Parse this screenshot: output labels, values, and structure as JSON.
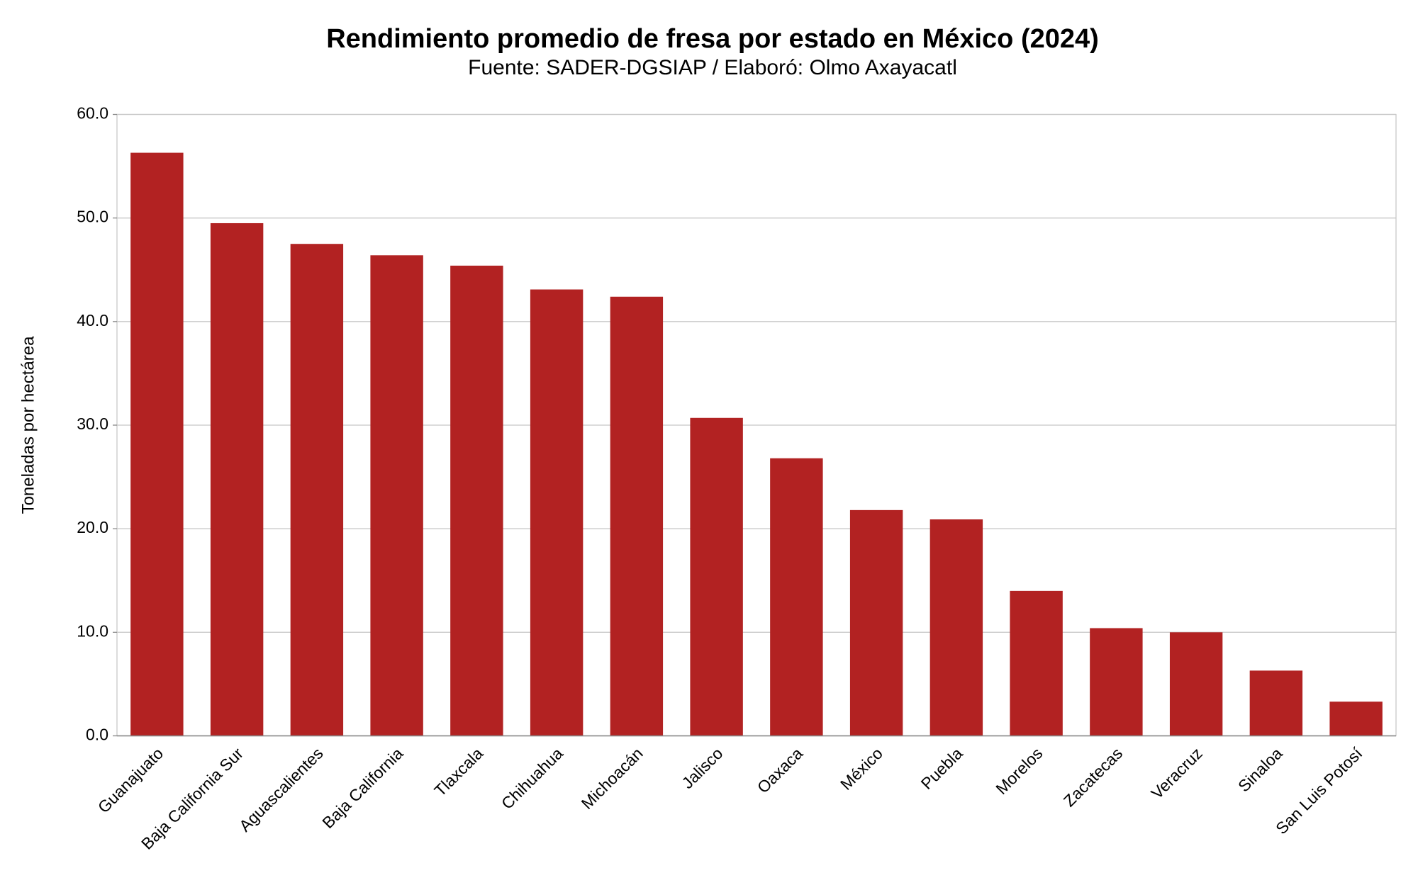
{
  "chart_data": {
    "type": "bar",
    "title": "Rendimiento promedio de fresa por estado en México (2024)",
    "subtitle": "Fuente: SADER-DGSIAP / Elaboró: Olmo Axayacatl",
    "y_label": "Toneladas por hectárea",
    "categories": [
      "Guanajuato",
      "Baja California Sur",
      "Aguascalientes",
      "Baja California",
      "Tlaxcala",
      "Chihuahua",
      "Michoacán",
      "Jalisco",
      "Oaxaca",
      "México",
      "Puebla",
      "Morelos",
      "Zacatecas",
      "Veracruz",
      "Sinaloa",
      "San Luis Potosí"
    ],
    "values": [
      56.3,
      49.5,
      47.5,
      46.4,
      45.4,
      43.1,
      42.4,
      30.7,
      26.8,
      21.8,
      20.9,
      14.0,
      10.4,
      10.0,
      6.3,
      3.3
    ],
    "color": "#b22222",
    "ylim": [
      0,
      60
    ],
    "yticks": [
      {
        "value": 0,
        "label": "0.0"
      },
      {
        "value": 10,
        "label": "10.0"
      },
      {
        "value": 20,
        "label": "20.0"
      },
      {
        "value": 30,
        "label": "30.0"
      },
      {
        "value": 40,
        "label": "40.0"
      },
      {
        "value": 50,
        "label": "50.0"
      },
      {
        "value": 60,
        "label": "60.0"
      }
    ],
    "grid": true
  }
}
